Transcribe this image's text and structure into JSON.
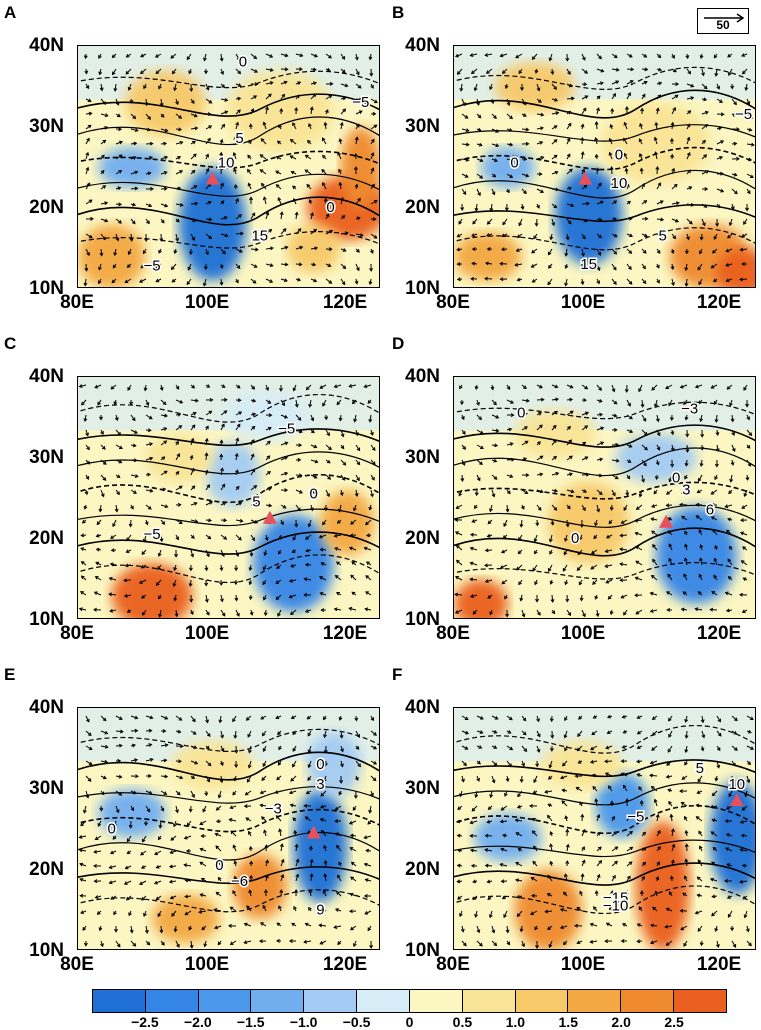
{
  "panels": [
    {
      "letter": "A",
      "contours": [
        {
          "t": "0"
        },
        {
          "t": "−5"
        },
        {
          "t": "5"
        },
        {
          "t": "10"
        },
        {
          "t": "15"
        },
        {
          "t": "0"
        },
        {
          "t": "−5"
        }
      ]
    },
    {
      "letter": "B",
      "contours": [
        {
          "t": "0"
        },
        {
          "t": "−5"
        },
        {
          "t": "0"
        },
        {
          "t": "10"
        },
        {
          "t": "5"
        },
        {
          "t": "15"
        }
      ]
    },
    {
      "letter": "C",
      "contours": [
        {
          "t": "−5"
        },
        {
          "t": "5"
        },
        {
          "t": "0"
        },
        {
          "t": "−5"
        }
      ]
    },
    {
      "letter": "D",
      "contours": [
        {
          "t": "0"
        },
        {
          "t": "−3"
        },
        {
          "t": "0"
        },
        {
          "t": "3"
        },
        {
          "t": "6"
        },
        {
          "t": "0"
        }
      ]
    },
    {
      "letter": "E",
      "contours": [
        {
          "t": "−3"
        },
        {
          "t": "0"
        },
        {
          "t": "3"
        },
        {
          "t": "0"
        },
        {
          "t": "0"
        },
        {
          "t": "−6"
        },
        {
          "t": "9"
        }
      ]
    },
    {
      "letter": "F",
      "contours": [
        {
          "t": "5"
        },
        {
          "t": "10"
        },
        {
          "t": "−5"
        },
        {
          "t": "−15"
        },
        {
          "t": "−10"
        }
      ]
    }
  ],
  "lat_labels": [
    "40N",
    "30N",
    "20N",
    "10N"
  ],
  "lon_labels": [
    "80E",
    "100E",
    "120E"
  ],
  "reference_vector": "50",
  "colorbar": {
    "colors": [
      "#1f6fd6",
      "#3585e6",
      "#4a97ec",
      "#71aef0",
      "#a3cbf3",
      "#d6ecf7",
      "#fbf6c2",
      "#f9e495",
      "#f7c969",
      "#f3a843",
      "#ef8a2f",
      "#ea5e1f"
    ],
    "ticks": [
      "−2.5",
      "−2.0",
      "−1.5",
      "−1.0",
      "−0.5",
      "0",
      "0.5",
      "1.0",
      "1.5",
      "2.0",
      "2.5"
    ]
  },
  "marker_color": "#e8505b"
}
